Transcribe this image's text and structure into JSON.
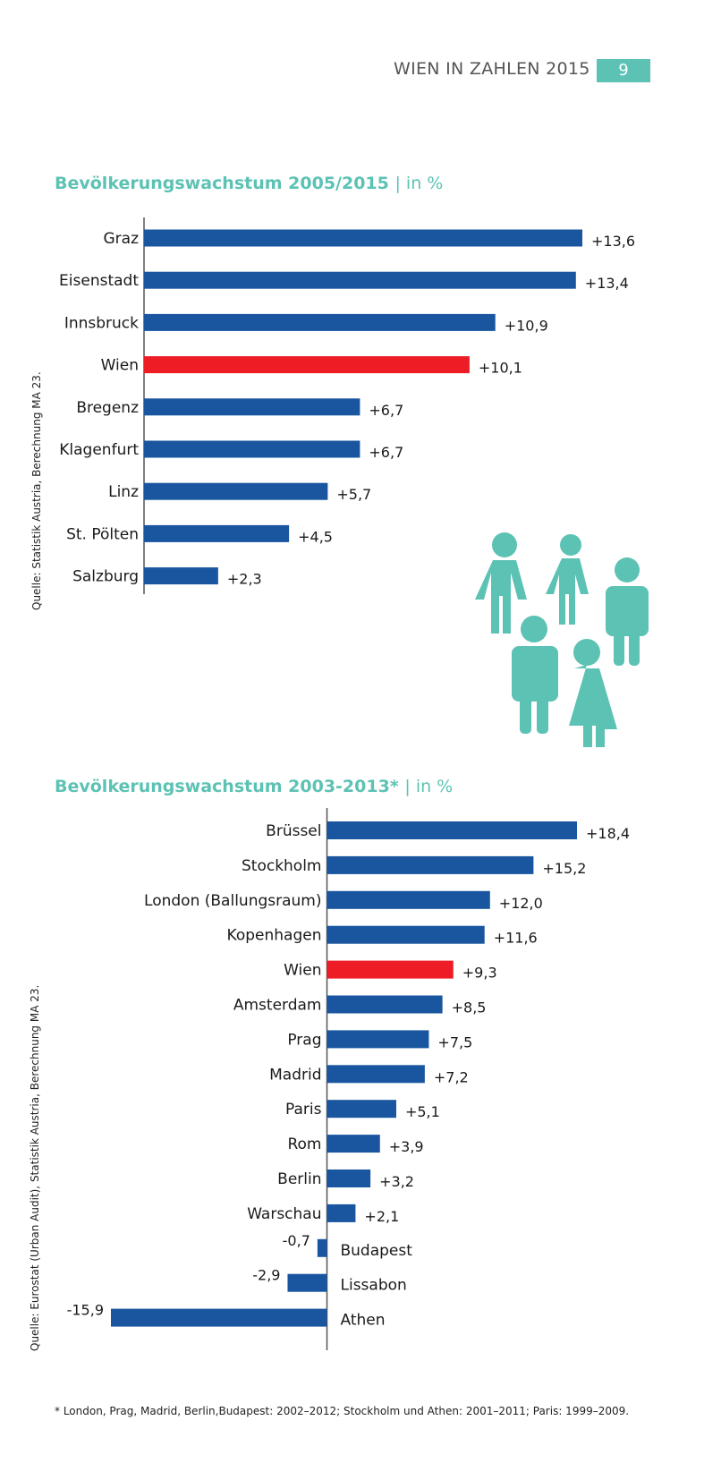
{
  "header": {
    "title": "WIEN IN ZAHLEN 2015",
    "page_number": "9"
  },
  "colors": {
    "bar": "#1a56a0",
    "highlight": "#ee1d25",
    "accent": "#5cc2b4",
    "axis": "#555555"
  },
  "chart_data": [
    {
      "type": "bar",
      "orientation": "horizontal",
      "title": "Bevölkerungswachstum 2005/2015",
      "unit": "| in %",
      "source": "Quelle: Statistik Austria, Berechnung MA 23.",
      "highlight": "Wien",
      "categories": [
        "Graz",
        "Eisenstadt",
        "Innsbruck",
        "Wien",
        "Bregenz",
        "Klagenfurt",
        "Linz",
        "St. Pölten",
        "Salzburg"
      ],
      "values": [
        13.6,
        13.4,
        10.9,
        10.1,
        6.7,
        6.7,
        5.7,
        4.5,
        2.3
      ],
      "value_labels": [
        "+13,6",
        "+13,4",
        "+10,9",
        "+10,1",
        "+6,7",
        "+6,7",
        "+5,7",
        "+4,5",
        "+2,3"
      ],
      "xlim": [
        0,
        13.6
      ]
    },
    {
      "type": "bar",
      "orientation": "horizontal",
      "title": "Bevölkerungswachstum 2003-2013*",
      "unit": "| in %",
      "source": "Quelle: Eurostat (Urban Audit),  Statistik Austria, Berechnung MA 23.",
      "highlight": "Wien",
      "categories": [
        "Brüssel",
        "Stockholm",
        "London (Ballungsraum)",
        "Kopenhagen",
        "Wien",
        "Amsterdam",
        "Prag",
        "Madrid",
        "Paris",
        "Rom",
        "Berlin",
        "Warschau",
        "Budapest",
        "Lissabon",
        "Athen"
      ],
      "values": [
        18.4,
        15.2,
        12.0,
        11.6,
        9.3,
        8.5,
        7.5,
        7.2,
        5.1,
        3.9,
        3.2,
        2.1,
        -0.7,
        -2.9,
        -15.9
      ],
      "value_labels": [
        "+18,4",
        "+15,2",
        "+12,0",
        "+11,6",
        "+9,3",
        "+8,5",
        "+7,5",
        "+7,2",
        "+5,1",
        "+3,9",
        "+3,2",
        "+2,1",
        "-0,7",
        "-2,9",
        "-15,9"
      ],
      "xlim": [
        -15.9,
        18.4
      ]
    }
  ],
  "footnote": "* London, Prag, Madrid, Berlin,Budapest: 2002–2012; Stockholm und Athen: 2001–2011; Paris: 1999–2009."
}
